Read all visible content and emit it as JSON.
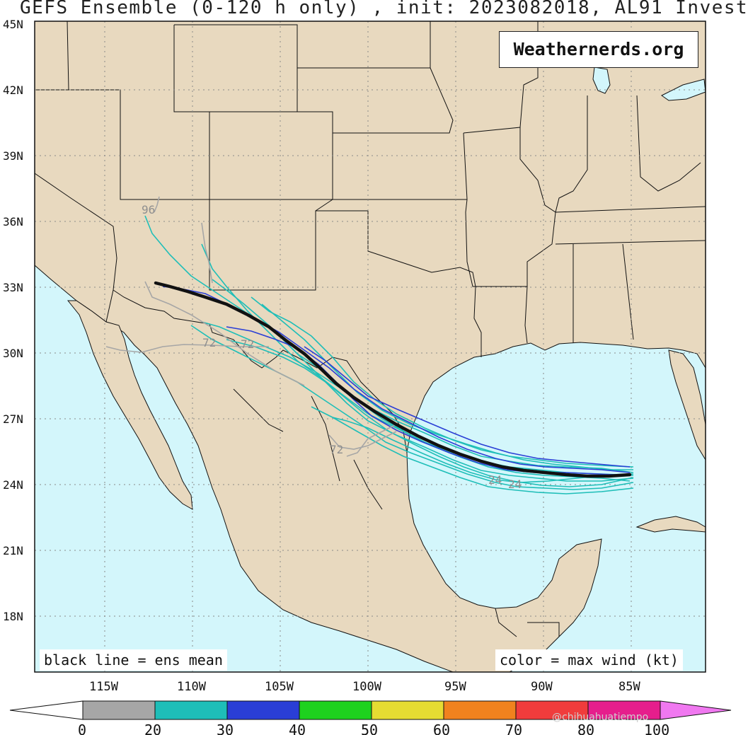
{
  "title": "GEFS Ensemble (0-120 h only) , init: 2023082018, AL91 Invest",
  "brand": "Weathernerds.org",
  "legend_left": "black line = ens mean",
  "legend_right": "color = max wind (kt)",
  "lat_labels": [
    "45N",
    "42N",
    "39N",
    "36N",
    "33N",
    "30N",
    "27N",
    "24N",
    "21N",
    "18N"
  ],
  "lon_labels": [
    "115W",
    "110W",
    "105W",
    "100W",
    "95W",
    "90W",
    "85W"
  ],
  "colorbar": {
    "ticks": [
      "0",
      "20",
      "30",
      "40",
      "50",
      "60",
      "70",
      "80",
      "100"
    ],
    "colors": [
      "#a6a6a6",
      "#1ebeb8",
      "#2a3ed6",
      "#1ed21e",
      "#e6dc32",
      "#f0821e",
      "#f03c3c",
      "#e61e8c",
      "#f078f0"
    ]
  },
  "colors": {
    "ocean": "#d3f6fb",
    "land": "#e8d9bf",
    "mean_track": "#111111"
  },
  "track_labels": [
    "96",
    "72",
    "72",
    "72",
    "24",
    "24"
  ],
  "watermark": "@chihuahuatiempo"
}
